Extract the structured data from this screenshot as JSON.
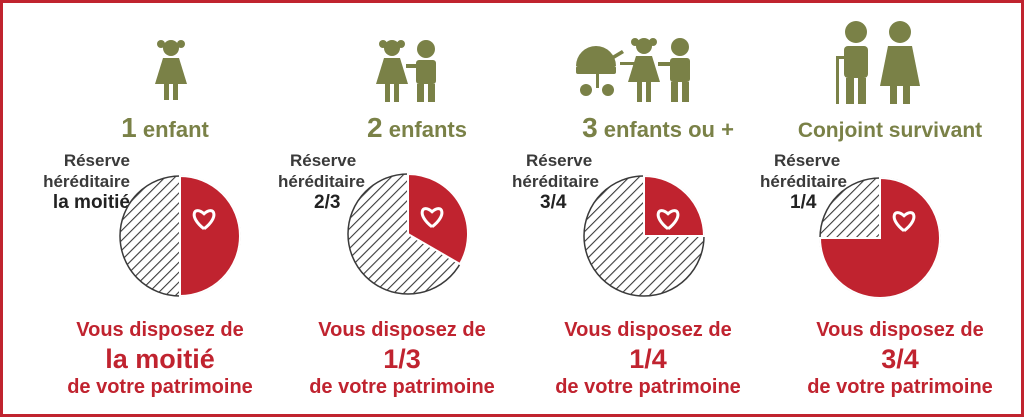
{
  "colors": {
    "accent": "#c0232f",
    "olive": "#7a8147",
    "hatch": "#3a3a3a"
  },
  "columns": [
    {
      "heading_num": "1",
      "heading_text": " enfant",
      "reserve_label_1": "Réserve",
      "reserve_label_2": "héréditaire",
      "reserve_value": "la moitié",
      "cta_line1": "Vous disposez de",
      "cta_value": "la moitié",
      "cta_line3": "de votre patrimoine",
      "free_share": 0.5
    },
    {
      "heading_num": "2",
      "heading_text": " enfants",
      "reserve_label_1": "Réserve",
      "reserve_label_2": "héréditaire",
      "reserve_value": "2/3",
      "cta_line1": "Vous disposez de",
      "cta_value": "1/3",
      "cta_line3": "de votre patrimoine",
      "free_share": 0.3333
    },
    {
      "heading_num": "3",
      "heading_text": " enfants ou +",
      "reserve_label_1": "Réserve",
      "reserve_label_2": "héréditaire",
      "reserve_value": "3/4",
      "cta_line1": "Vous disposez de",
      "cta_value": "1/4",
      "cta_line3": "de votre patrimoine",
      "free_share": 0.25
    },
    {
      "heading_num": "",
      "heading_text": "Conjoint survivant",
      "reserve_label_1": "Réserve",
      "reserve_label_2": "héréditaire",
      "reserve_value": "1/4",
      "cta_line1": "Vous disposez de",
      "cta_value": "3/4",
      "cta_line3": "de votre patrimoine",
      "free_share": 0.75
    }
  ],
  "icons": [
    "girl-icon",
    "two-children-icon",
    "three-children-stroller-icon",
    "elderly-couple-icon"
  ]
}
